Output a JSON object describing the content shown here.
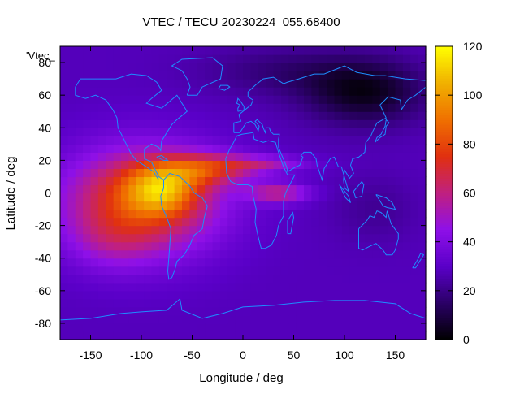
{
  "chart_data": {
    "type": "heatmap",
    "title": "VTEC / TECU 20230224_055.68400",
    "xlabel": "Longitude / deg",
    "ylabel": "Latitude / deg",
    "key_label": "'Vtec_",
    "xlim": [
      -180,
      180
    ],
    "ylim": [
      -90,
      90
    ],
    "x_ticks": [
      -150,
      -100,
      -50,
      0,
      50,
      100,
      150
    ],
    "y_ticks": [
      -80,
      -60,
      -40,
      -20,
      0,
      20,
      40,
      60,
      80
    ],
    "colorbar": {
      "range": [
        0,
        120
      ],
      "ticks": [
        0,
        20,
        40,
        60,
        80,
        100,
        120
      ],
      "palette": [
        "#000000",
        "#2a0066",
        "#5a00c8",
        "#8e10e8",
        "#c02080",
        "#e03010",
        "#f07000",
        "#f0b000",
        "#ffff00"
      ]
    },
    "coastline_color": "#1e8cff",
    "features": [
      {
        "lon": -90,
        "lat": 2,
        "vtec": 110
      },
      {
        "lon": -55,
        "lat": 10,
        "vtec": 95
      },
      {
        "lon": -30,
        "lat": 18,
        "vtec": 80
      },
      {
        "lon": 40,
        "lat": 0,
        "vtec": 60
      },
      {
        "lon": 90,
        "lat": 90,
        "vtec": 15
      },
      {
        "lon": 120,
        "lat": 50,
        "vtec": 5
      }
    ]
  }
}
